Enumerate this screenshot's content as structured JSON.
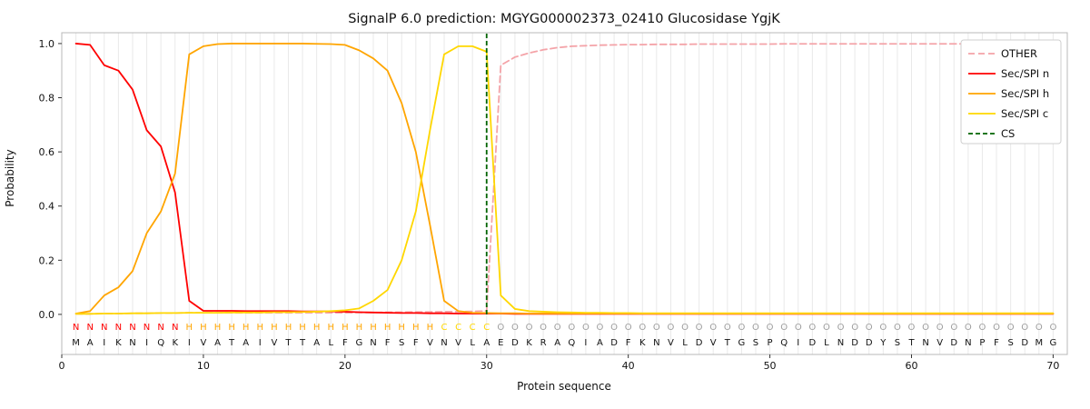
{
  "chart_data": {
    "type": "line",
    "title": "SignalP 6.0 prediction: MGYG000002373_02410 Glucosidase YgjK",
    "xlabel": "Protein sequence",
    "ylabel": "Probability",
    "xlim": [
      0,
      71
    ],
    "ylim": [
      -0.148,
      1.04
    ],
    "xticks": [
      0,
      10,
      20,
      30,
      40,
      50,
      60,
      70
    ],
    "yticks": [
      "0.0",
      "0.2",
      "0.4",
      "0.6",
      "0.8",
      "1.0"
    ],
    "grid": "vertical-per-residue",
    "legend_position": "upper right",
    "colors": {
      "grid": "#e9e9e9",
      "frame": "#b8b8b8",
      "tick": "#333333",
      "sequence_text": "#111111"
    },
    "sequence": "MAIKNIQKIVATAIVTTALFGNFSFVNVLAEDKRAQIADFKNVLDVTGSPQIDLNDDYSTNVDNPFSDMG",
    "regions": "NNNNNNNNHHHHHHHHHHHHHHHHHHCCCCOOOOOOOOOOOOOOOOOOOOOOOOOOOOOOOOOOOOOOOO",
    "region_colors": {
      "N": "#ff0000",
      "H": "#ffa500",
      "C": "#ffd700",
      "O": "#9e9e9e"
    },
    "cs_position": 30,
    "series": [
      {
        "name": "OTHER",
        "color": "#f4a3a8",
        "dash": [
          7,
          4
        ],
        "values": [
          0.002,
          0.002,
          0.003,
          0.003,
          0.004,
          0.004,
          0.005,
          0.005,
          0.006,
          0.006,
          0.006,
          0.006,
          0.006,
          0.006,
          0.006,
          0.006,
          0.006,
          0.006,
          0.006,
          0.006,
          0.007,
          0.007,
          0.008,
          0.008,
          0.009,
          0.009,
          0.01,
          0.01,
          0.011,
          0.013,
          0.92,
          0.95,
          0.965,
          0.977,
          0.985,
          0.99,
          0.992,
          0.994,
          0.995,
          0.996,
          0.996,
          0.997,
          0.997,
          0.997,
          0.998,
          0.998,
          0.998,
          0.998,
          0.998,
          0.998,
          0.999,
          0.999,
          0.999,
          0.999,
          0.999,
          0.999,
          0.999,
          0.999,
          0.999,
          0.999,
          0.999,
          0.999,
          0.999,
          0.999,
          0.999,
          0.999,
          0.999,
          0.999,
          0.999,
          0.999
        ]
      },
      {
        "name": "Sec/SPI n",
        "color": "#ff0000",
        "dash": null,
        "values": [
          1.0,
          0.995,
          0.92,
          0.9,
          0.83,
          0.68,
          0.62,
          0.45,
          0.05,
          0.013,
          0.013,
          0.013,
          0.012,
          0.012,
          0.012,
          0.012,
          0.011,
          0.011,
          0.011,
          0.01,
          0.008,
          0.007,
          0.006,
          0.005,
          0.005,
          0.004,
          0.004,
          0.003,
          0.003,
          0.003,
          0.003,
          0.002,
          0.002,
          0.002,
          0.002,
          0.002,
          0.002,
          0.002,
          0.002,
          0.002,
          0.002,
          0.002,
          0.002,
          0.002,
          0.002,
          0.002,
          0.002,
          0.002,
          0.002,
          0.002,
          0.002,
          0.002,
          0.002,
          0.002,
          0.002,
          0.002,
          0.002,
          0.002,
          0.002,
          0.002,
          0.002,
          0.002,
          0.002,
          0.002,
          0.002,
          0.002,
          0.002,
          0.002,
          0.002,
          0.002
        ]
      },
      {
        "name": "Sec/SPI h",
        "color": "#ffa500",
        "dash": null,
        "values": [
          0.003,
          0.012,
          0.07,
          0.1,
          0.16,
          0.3,
          0.38,
          0.52,
          0.96,
          0.99,
          0.998,
          1.0,
          1.0,
          1.0,
          1.0,
          1.0,
          1.0,
          0.999,
          0.998,
          0.995,
          0.975,
          0.945,
          0.9,
          0.78,
          0.6,
          0.33,
          0.05,
          0.012,
          0.006,
          0.005,
          0.004,
          0.004,
          0.003,
          0.003,
          0.003,
          0.003,
          0.003,
          0.003,
          0.003,
          0.003,
          0.003,
          0.003,
          0.003,
          0.003,
          0.003,
          0.003,
          0.003,
          0.003,
          0.003,
          0.003,
          0.003,
          0.003,
          0.003,
          0.003,
          0.003,
          0.003,
          0.003,
          0.003,
          0.003,
          0.003,
          0.003,
          0.003,
          0.003,
          0.003,
          0.003,
          0.003,
          0.003,
          0.003,
          0.003,
          0.003
        ]
      },
      {
        "name": "Sec/SPI c",
        "color": "#ffd700",
        "dash": null,
        "values": [
          0.002,
          0.002,
          0.003,
          0.003,
          0.004,
          0.004,
          0.005,
          0.005,
          0.006,
          0.006,
          0.006,
          0.007,
          0.007,
          0.007,
          0.008,
          0.008,
          0.009,
          0.01,
          0.012,
          0.015,
          0.022,
          0.05,
          0.09,
          0.2,
          0.38,
          0.68,
          0.96,
          0.99,
          0.99,
          0.97,
          0.07,
          0.02,
          0.012,
          0.01,
          0.008,
          0.007,
          0.006,
          0.006,
          0.005,
          0.005,
          0.004,
          0.004,
          0.004,
          0.004,
          0.004,
          0.004,
          0.004,
          0.004,
          0.004,
          0.004,
          0.004,
          0.004,
          0.004,
          0.004,
          0.004,
          0.004,
          0.004,
          0.004,
          0.004,
          0.004,
          0.004,
          0.004,
          0.004,
          0.004,
          0.004,
          0.004,
          0.004,
          0.004,
          0.004,
          0.004
        ]
      },
      {
        "name": "CS",
        "color": "#006400",
        "dash": [
          5,
          3
        ],
        "vline": 30
      }
    ],
    "legend": [
      "OTHER",
      "Sec/SPI n",
      "Sec/SPI h",
      "Sec/SPI c",
      "CS"
    ]
  }
}
